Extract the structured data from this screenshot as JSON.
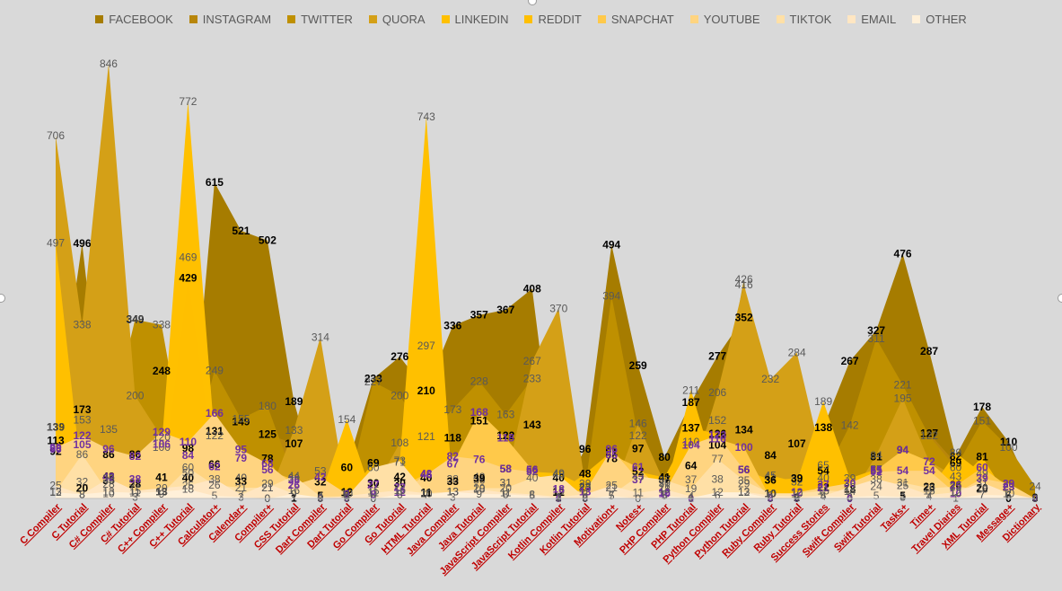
{
  "chart_data": {
    "type": "area",
    "categories": [
      "C Compiler",
      "C Tutorial",
      "C# Compiler",
      "C# Tutorial",
      "C++ Compiler",
      "C++ Tutorial",
      "Calculator+",
      "Calendar+",
      "Compiler+",
      "CSS Tutorial",
      "Dart Compiler",
      "Dart Tutorial",
      "Go Compiler",
      "Go Tutorial",
      "HTML Tutorial",
      "Java Compiler",
      "Java Tutorial",
      "JavaScript Compiler",
      "JavaScript Tutorial",
      "Kotlin Compiler",
      "Kotlin Tutorial",
      "Motivation+",
      "Notes+",
      "PHP Compiler",
      "PHP Tutorial",
      "Python Compiler",
      "Python Tutorial",
      "Ruby Compiler",
      "Ruby Tutorial",
      "Success Stories",
      "Swift Compiler",
      "Swift Tutorial",
      "Tasks+",
      "Time+",
      "Travel Diaries",
      "XML Tutorial",
      "Message+",
      "Dictionary"
    ],
    "series": [
      {
        "name": "FACEBOOK",
        "color": "#a67c00",
        "label_color": "#000000",
        "values": [
          139,
          496,
          43,
          349,
          248,
          40,
          615,
          521,
          502,
          189,
          5,
          60,
          233,
          276,
          210,
          336,
          357,
          367,
          408,
          2,
          96,
          494,
          259,
          80,
          187,
          277,
          352,
          84,
          107,
          138,
          267,
          327,
          476,
          287,
          82,
          178,
          110,
          2
        ]
      },
      {
        "name": "INSTAGRAM",
        "color": "#b8860b",
        "label_color": "#000000",
        "values": [
          113,
          173,
          35,
          28,
          41,
          98,
          131,
          149,
          125,
          107,
          32,
          12,
          30,
          30,
          40,
          118,
          151,
          122,
          143,
          40,
          23,
          78,
          97,
          37,
          64,
          104,
          134,
          10,
          2,
          54,
          18,
          81,
          94,
          127,
          69,
          20,
          23,
          0
        ]
      },
      {
        "name": "TWITTER",
        "color": "#bf9000",
        "label_color": "#595959",
        "values": [
          139,
          153,
          135,
          348,
          338,
          50,
          249,
          155,
          180,
          39,
          53,
          10,
          227,
          200,
          121,
          173,
          228,
          163,
          233,
          15,
          20,
          394,
          122,
          21,
          110,
          152,
          426,
          41,
          38,
          40,
          142,
          311,
          221,
          122,
          60,
          151,
          100,
          24
        ]
      },
      {
        "name": "QUORA",
        "color": "#d4a017",
        "label_color": "#595959",
        "values": [
          706,
          338,
          846,
          200,
          120,
          469,
          62,
          40,
          0,
          133,
          314,
          2,
          15,
          108,
          297,
          38,
          36,
          31,
          267,
          370,
          29,
          5,
          146,
          30,
          37,
          206,
          416,
          232,
          284,
          65,
          0,
          84,
          195,
          72,
          43,
          7,
          7,
          0
        ]
      },
      {
        "name": "LINKEDIN",
        "color": "#ffc000",
        "label_color": "#595959",
        "values": [
          497,
          32,
          28,
          31,
          100,
          772,
          122,
          40,
          21,
          16,
          5,
          154,
          0,
          71,
          743,
          13,
          42,
          31,
          52,
          49,
          23,
          21,
          37,
          8,
          211,
          38,
          29,
          45,
          32,
          189,
          39,
          57,
          3,
          15,
          89,
          49,
          28,
          0
        ]
      },
      {
        "name": "REDDIT",
        "color": "#ffbf00",
        "label_color": "#000000",
        "values": [
          92,
          20,
          86,
          86,
          13,
          429,
          66,
          33,
          78,
          1,
          5,
          7,
          69,
          42,
          11,
          33,
          39,
          58,
          56,
          12,
          48,
          91,
          52,
          41,
          137,
          126,
          56,
          36,
          39,
          22,
          0,
          55,
          5,
          23,
          26,
          81,
          0,
          0
        ]
      },
      {
        "name": "SNAPCHAT",
        "color": "#ffc94a",
        "label_color": "#7030a0",
        "values": [
          96,
          105,
          42,
          38,
          106,
          84,
          62,
          79,
          56,
          36,
          0,
          0,
          27,
          22,
          48,
          67,
          168,
          118,
          56,
          0,
          0,
          85,
          61,
          10,
          0,
          116,
          100,
          0,
          0,
          27,
          0,
          55,
          94,
          72,
          25,
          60,
          23,
          0
        ]
      },
      {
        "name": "YOUTUBE",
        "color": "#ffd480",
        "label_color": "#7030a0",
        "values": [
          99,
          122,
          96,
          82,
          129,
          110,
          166,
          95,
          68,
          26,
          42,
          9,
          8,
          12,
          46,
          82,
          76,
          58,
          52,
          18,
          13,
          96,
          37,
          12,
          104,
          123,
          56,
          2,
          12,
          21,
          30,
          52,
          54,
          54,
          10,
          39,
          29,
          0
        ]
      },
      {
        "name": "TIKTOK",
        "color": "#ffe0a6",
        "label_color": "#595959",
        "values": [
          13,
          86,
          10,
          3,
          9,
          60,
          26,
          21,
          21,
          44,
          4,
          4,
          60,
          73,
          10,
          3,
          20,
          20,
          40,
          46,
          2,
          7,
          43,
          36,
          19,
          77,
          35,
          10,
          10,
          15,
          14,
          24,
          31,
          20,
          23,
          18,
          6,
          0
        ]
      },
      {
        "name": "EMAIL",
        "color": "#ffe6c2",
        "label_color": "#595959",
        "values": [
          25,
          8,
          39,
          15,
          20,
          25,
          38,
          7,
          29,
          9,
          0,
          5,
          11,
          16,
          10,
          13,
          18,
          11,
          8,
          3,
          8,
          25,
          11,
          18,
          4,
          6,
          13,
          6,
          4,
          5,
          22,
          38,
          25,
          7,
          12,
          31,
          10,
          0
        ]
      },
      {
        "name": "OTHER",
        "color": "#fff0d9",
        "label_color": "#595959",
        "values": [
          12,
          8,
          13,
          11,
          13,
          18,
          5,
          3,
          0,
          9,
          2,
          0,
          0,
          8,
          7,
          13,
          9,
          8,
          5,
          1,
          0,
          5,
          0,
          5,
          1,
          12,
          12,
          0,
          0,
          4,
          3,
          5,
          3,
          4,
          1,
          7,
          6,
          0
        ]
      }
    ],
    "legend_position": "top",
    "grid": false,
    "ylim": [
      0,
      900
    ]
  }
}
